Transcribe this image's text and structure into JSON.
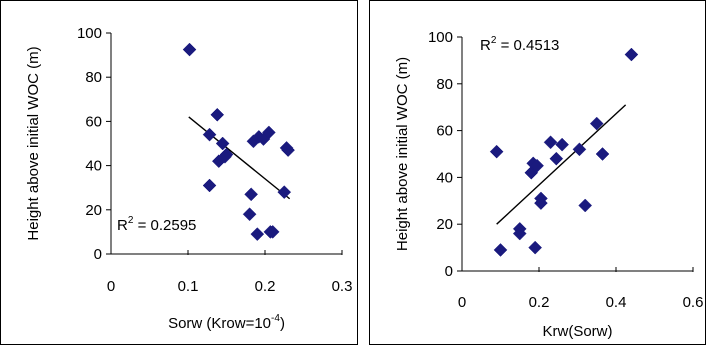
{
  "chart_data": [
    {
      "type": "scatter",
      "xlabel": "Sorw (Krow=10",
      "xlabel_sup": "-4",
      "xlabel_tail": ")",
      "ylabel": "Height above initial WOC (m)",
      "xlim": [
        0,
        0.3
      ],
      "ylim": [
        0,
        100
      ],
      "x_ticks": [
        "0",
        "0.1",
        "0.2",
        "0.3"
      ],
      "y_ticks": [
        "0",
        "20",
        "40",
        "60",
        "80",
        "100"
      ],
      "r2_label": "R",
      "r2_sup": "2",
      "r2_value": " = 0.2595",
      "grid": false,
      "marker": "diamond",
      "marker_color": "#1a1a7e",
      "series": [
        {
          "points": [
            [
              0.102,
              92.5
            ],
            [
              0.128,
              54
            ],
            [
              0.128,
              31
            ],
            [
              0.138,
              63
            ],
            [
              0.14,
              42
            ],
            [
              0.145,
              50
            ],
            [
              0.148,
              44
            ],
            [
              0.15,
              45
            ],
            [
              0.182,
              27
            ],
            [
              0.18,
              18
            ],
            [
              0.185,
              51
            ],
            [
              0.19,
              9
            ],
            [
              0.192,
              53
            ],
            [
              0.198,
              52
            ],
            [
              0.205,
              55
            ],
            [
              0.207,
              10
            ],
            [
              0.21,
              10
            ],
            [
              0.225,
              28
            ],
            [
              0.228,
              48
            ],
            [
              0.23,
              47
            ]
          ]
        }
      ],
      "trendline": {
        "x": [
          0.101,
          0.232
        ],
        "y": [
          62,
          25
        ]
      }
    },
    {
      "type": "scatter",
      "xlabel": "Krw(Sorw)",
      "ylabel": "Height above initial WOC (m)",
      "xlim": [
        0,
        0.6
      ],
      "ylim": [
        0,
        100
      ],
      "x_ticks": [
        "0",
        "0.2",
        "0.4",
        "0.6"
      ],
      "y_ticks": [
        "0",
        "20",
        "40",
        "60",
        "80",
        "100"
      ],
      "r2_label": "R",
      "r2_sup": "2",
      "r2_value": " = 0.4513",
      "grid": false,
      "marker": "diamond",
      "marker_color": "#1a1a7e",
      "series": [
        {
          "points": [
            [
              0.09,
              51
            ],
            [
              0.1,
              9
            ],
            [
              0.15,
              18
            ],
            [
              0.15,
              16
            ],
            [
              0.18,
              42
            ],
            [
              0.185,
              46
            ],
            [
              0.19,
              10
            ],
            [
              0.195,
              45
            ],
            [
              0.205,
              31
            ],
            [
              0.205,
              29
            ],
            [
              0.23,
              55
            ],
            [
              0.245,
              48
            ],
            [
              0.26,
              54
            ],
            [
              0.305,
              52
            ],
            [
              0.32,
              28
            ],
            [
              0.35,
              63
            ],
            [
              0.365,
              50
            ],
            [
              0.44,
              92.5
            ]
          ]
        }
      ],
      "trendline": {
        "x": [
          0.09,
          0.425
        ],
        "y": [
          20,
          71
        ]
      }
    }
  ]
}
